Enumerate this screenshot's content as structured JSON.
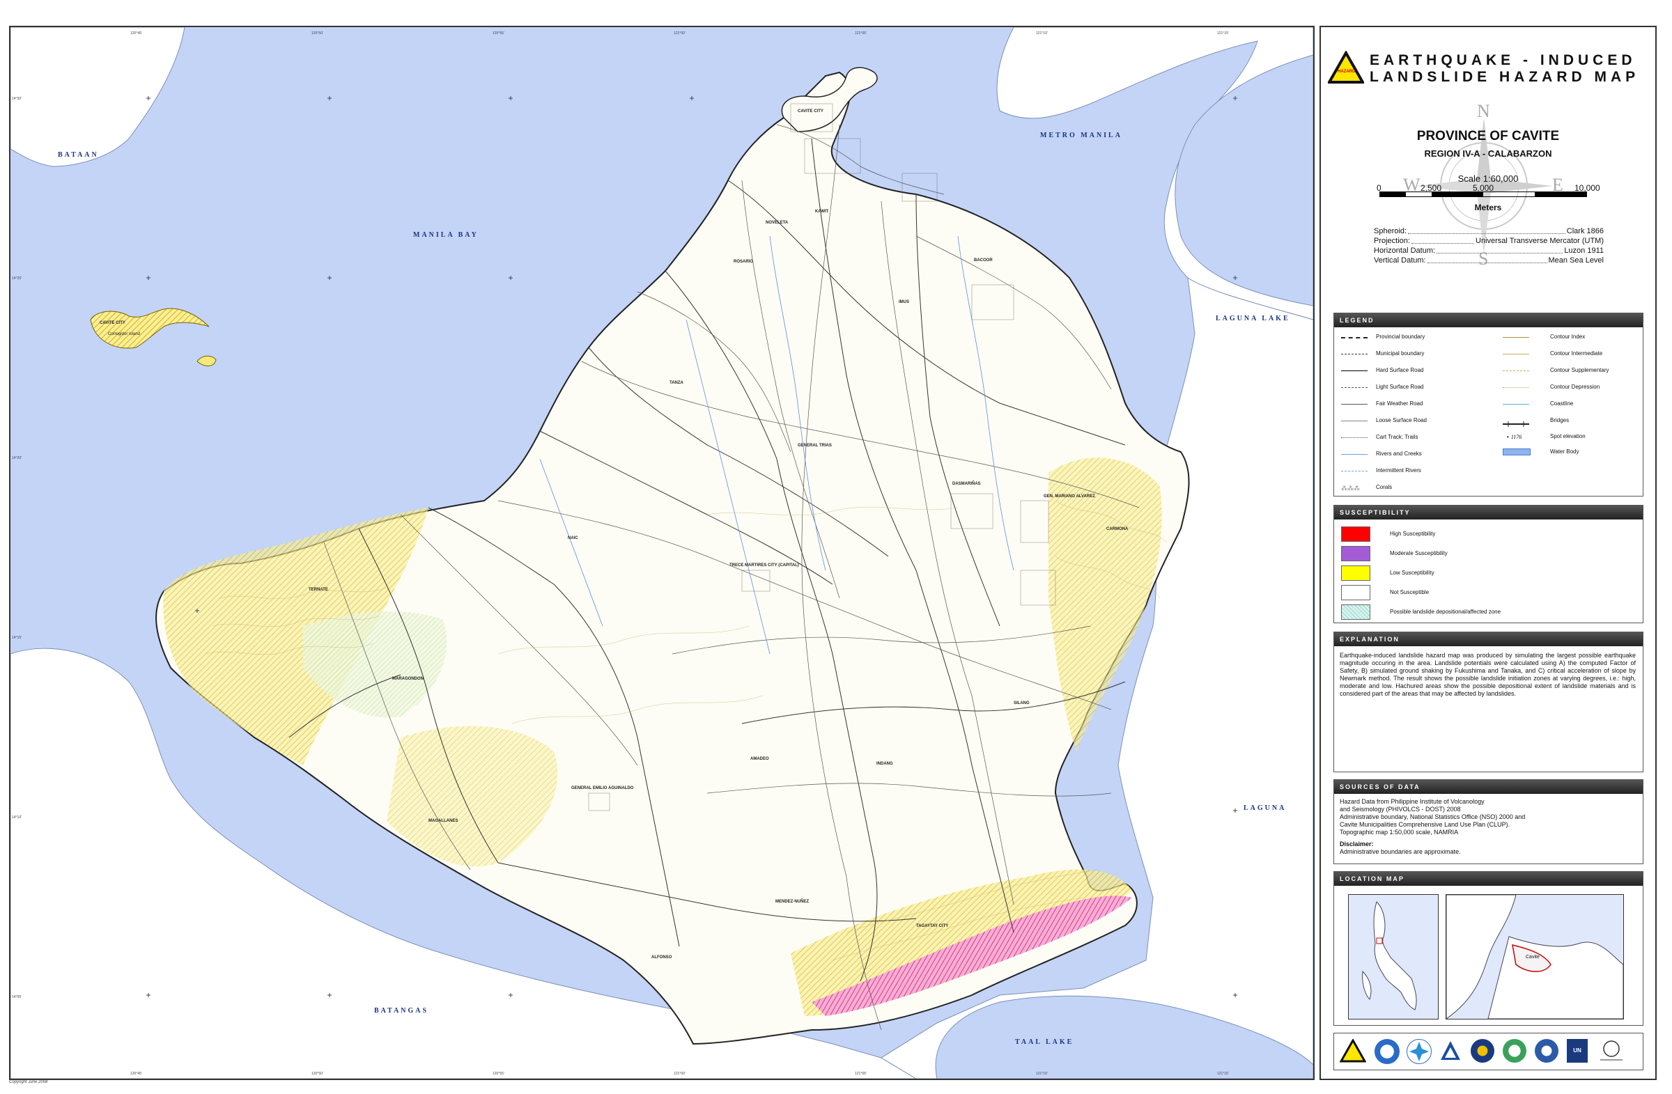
{
  "map": {
    "water_labels": {
      "bataan": "BATAAN",
      "manila_bay": "MANILA BAY",
      "metro_manila": "METRO MANILA",
      "laguna_lake": "LAGUNA LAKE",
      "laguna": "LAGUNA",
      "batangas": "BATANGAS",
      "taal_lake": "TAAL LAKE"
    },
    "towns": {
      "cavite_city": "CAVITE CITY",
      "rosario": "ROSARIO",
      "kawit": "KAWIT",
      "noveleta": "NOVELETA",
      "bacoor": "BACOOR",
      "imus": "IMUS",
      "tanza": "TANZA",
      "general_trias": "GENERAL TRIAS",
      "dasmarinas": "DASMARIÑAS",
      "gma": "GEN. MARIANO ALVAREZ",
      "carmona": "CARMONA",
      "naic": "NAIC",
      "trece_martires": "TRECE MARTIRES CITY (CAPITAL)",
      "ternate": "TERNATE",
      "maragondon": "MARAGONDON",
      "silang": "SILANG",
      "general_emilio_aguinaldo": "GENERAL EMILIO AGUINALDO",
      "amadeo": "AMADEO",
      "indang": "INDANG",
      "magallanes": "MAGALLANES",
      "alfonso": "ALFONSO",
      "mendez": "MENDEZ-NUÑEZ",
      "tagaytay": "TAGAYTAY CITY",
      "caballo": "CAVITE CITY",
      "island": "Corregidor Island"
    },
    "ticks_top": [
      "120°45'",
      "120°50'",
      "120°55'",
      "121°00'",
      "121°05'",
      "121°10'",
      "121°15'"
    ],
    "ticks_bottom": [
      "120°45'",
      "120°50'",
      "120°55'",
      "121°00'",
      "121°05'",
      "121°10'",
      "121°15'"
    ],
    "ticks_side": [
      "14°30'",
      "14°25'",
      "14°20'",
      "14°15'",
      "14°10'",
      "14°05'"
    ],
    "copyright": "Copyright June 2008"
  },
  "title": {
    "line1": "EARTHQUAKE - INDUCED",
    "line2": "LANDSLIDE HAZARD MAP",
    "badge": "HAZARD",
    "province": "PROVINCE OF CAVITE",
    "region": "REGION IV-A - CALABARZON",
    "scale_text": "Scale 1:60,000",
    "scale_ticks": [
      "0",
      "2,500",
      "5,000",
      "10,000"
    ],
    "scale_unit": "Meters",
    "compass": {
      "n": "N",
      "s": "S",
      "e": "E",
      "w": "W"
    },
    "datum": [
      {
        "label": "Spheroid:",
        "value": "Clark 1866"
      },
      {
        "label": "Projection:",
        "value": "Universal Transverse Mercator (UTM)"
      },
      {
        "label": "Horizontal Datum:",
        "value": "Luzon 1911"
      },
      {
        "label": "Vertical Datum:",
        "value": "Mean Sea Level"
      }
    ]
  },
  "legend": {
    "heading": "LEGEND",
    "left": [
      "Provincial boundary",
      "Municipal boundary",
      "Hard Surface Road",
      "Light Surface Road",
      "Fair Weather Road",
      "Loose Surface Road",
      "Cart Track; Trails",
      "Rivers and Creeks",
      "Intermittent Rivers",
      "Corals"
    ],
    "right": [
      "Contour Index",
      "Contour Intermediate",
      "Contour Supplementary",
      "Contour Depression",
      "Coastline",
      "Bridges",
      "Spot elevation",
      "Water Body"
    ],
    "spot_value": "1176"
  },
  "susceptibility": {
    "heading": "SUSCEPTIBILITY",
    "items": [
      {
        "label": "High Susceptibility",
        "color": "#ff0000"
      },
      {
        "label": "Moderate Susceptibility",
        "color": "#a35cd6"
      },
      {
        "label": "Low Susceptibility",
        "color": "#ffff00"
      },
      {
        "label": "Not Susceptible",
        "color": "#ffffff"
      },
      {
        "label": "Possible landslide depositional/affected zone",
        "color": "#d8f2ee"
      }
    ]
  },
  "explanation": {
    "heading": "EXPLANATION",
    "text": "Earthquake-induced landslide hazard map was produced by simulating the largest possible earthquake magnitude occuring in the area. Landslide potentials were calculated using A) the computed Factor of Safety, B) simulated ground shaking by Fukushima and Tanaka, and C) critical acceleration of slope by Newmark method. The result shows the possible landslide initiation zones at varying degrees, i.e.: high, moderate and low. Hachured areas show the possible depositional extent of landslide materials and is considered part of the areas that may be affected by landslides."
  },
  "sources": {
    "heading": "SOURCES OF DATA",
    "lines": [
      "Hazard Data from Philippine Institute of Volcanology",
      "and Seismology (PHIVOLCS - DOST) 2008",
      "Administrative boundary, National Statistics Office (NSO) 2000 and",
      "Cavite Municipalities Comprehensive Land Use Plan (CLUP).",
      "Topographic map 1:50,000 scale, NAMRIA"
    ],
    "disclaimer_label": "Disclaimer:",
    "disclaimer_text": "Administrative boundaries are approximate."
  },
  "location_map": {
    "heading": "LOCATION MAP",
    "inset_label": "Cavite"
  },
  "logos": [
    "hazard-logo",
    "phivolcs-logo",
    "dost-logo",
    "ndcc-logo",
    "readi-logo",
    "namria-logo",
    "mgb-logo",
    "undp-logo",
    "ausaid-logo"
  ],
  "colors": {
    "water": "#c3d4f7",
    "land": "#fdfdf5",
    "low": "#ffff00",
    "high": "#ff0000",
    "moderate": "#a35cd6"
  }
}
